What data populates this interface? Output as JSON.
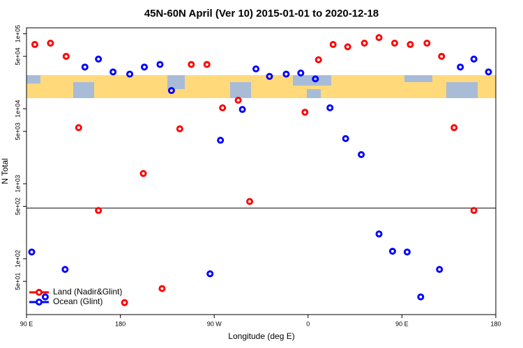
{
  "chart_data": {
    "type": "scatter",
    "title": "45N-60N April (Ver 10)   2015-01-01 to 2020-12-18",
    "x_label": "Longitude (deg E)",
    "y_label": "N Total",
    "xlim": [
      90,
      540
    ],
    "ylim": [
      18,
      120000
    ],
    "log_y": true,
    "legend": "bottom-left",
    "xticks": [
      {
        "value": 90,
        "label": "90 E"
      },
      180,
      {
        "value": 270,
        "label": "90 W"
      },
      {
        "value": 360,
        "label": "0"
      },
      {
        "value": 450,
        "label": "90 E"
      },
      {
        "value": 540,
        "label": "180"
      }
    ],
    "yticks": [
      {
        "value": 100000,
        "label": "1e+05"
      },
      {
        "value": 50000,
        "label": "5e+04"
      },
      {
        "value": 10000,
        "label": "1e+04"
      },
      {
        "value": 5000,
        "label": "5e+03"
      },
      {
        "value": 1000,
        "label": "1e+03"
      },
      {
        "value": 500,
        "label": "5e+02"
      },
      {
        "value": 100,
        "label": "1e+02"
      },
      {
        "value": 50,
        "label": "5e+01"
      }
    ],
    "series": [
      {
        "name": "Land (Nadir&Glint)",
        "color": "#ff0000",
        "x": [
          98,
          113,
          128,
          140,
          159,
          202,
          220,
          237,
          248,
          263,
          278,
          293,
          304,
          357,
          370,
          384,
          398,
          414,
          428,
          443,
          458,
          474,
          488,
          500,
          519,
          184
        ],
        "values": [
          72000,
          75000,
          50000,
          5600,
          440,
          1370,
          40,
          5400,
          39000,
          39000,
          10300,
          13000,
          580,
          9000,
          45000,
          72000,
          67000,
          75000,
          89000,
          75000,
          72000,
          75000,
          50000,
          5600,
          440,
          26
        ]
      },
      {
        "name": "Ocean (Glint)",
        "color": "#0000ff",
        "x": [
          95,
          108,
          127,
          146,
          159,
          173,
          189,
          203,
          218,
          229,
          266,
          276,
          297,
          310,
          323,
          339,
          353,
          367,
          381,
          396,
          411,
          428,
          441,
          455,
          468,
          486,
          506,
          519,
          533
        ],
        "values": [
          123,
          31,
          72,
          36000,
          46000,
          31000,
          29000,
          36000,
          39000,
          17500,
          63,
          3800,
          9800,
          34000,
          27000,
          29000,
          30000,
          25000,
          10300,
          4000,
          2450,
          214,
          126,
          123,
          31,
          72,
          36000,
          46000,
          31000
        ]
      }
    ]
  }
}
